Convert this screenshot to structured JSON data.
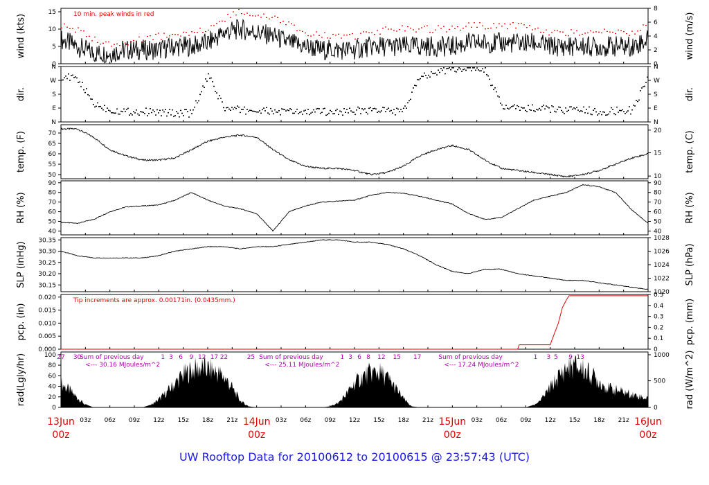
{
  "footer": "UW Rooftop Data for 20100612  to  20100615 @ 23:57:43  (UTC)",
  "colors": {
    "peak": "#e00000",
    "precip": "#e00000",
    "annot": "#b000b0",
    "footer": "#1a1ae0",
    "date": "#e00000"
  },
  "chart_data": [
    {
      "type": "line",
      "panel": "wind",
      "ylabel_left": "wind (kts)",
      "ylabel_right": "wind (m/s)",
      "left_ticks": [
        "0",
        "5",
        "10",
        "15"
      ],
      "right_ticks": [
        "0",
        "2",
        "4",
        "6",
        "8"
      ],
      "ylim": [
        0,
        16
      ],
      "annotation": "10 min. peak winds in red",
      "series": [
        {
          "x": [
            0,
            2,
            4,
            6,
            8,
            10,
            12,
            14,
            16,
            18,
            20,
            22,
            24,
            26,
            28,
            30,
            32,
            34,
            36,
            38,
            40,
            42,
            44,
            46,
            48,
            50,
            52,
            54,
            56,
            58,
            60,
            62,
            64,
            66,
            68,
            70,
            72
          ],
          "values": [
            7,
            5,
            3,
            3,
            4,
            4,
            4,
            5,
            5,
            6,
            9,
            10,
            9,
            8,
            6,
            5,
            4,
            4,
            4,
            5,
            5,
            5,
            5,
            5,
            5,
            6,
            6,
            6,
            6,
            6,
            5,
            5,
            5,
            5,
            5,
            5,
            7
          ]
        },
        {
          "x": [
            0,
            2,
            4,
            6,
            8,
            10,
            12,
            14,
            16,
            18,
            20,
            22,
            24,
            26,
            28,
            30,
            32,
            34,
            36,
            38,
            40,
            42,
            44,
            46,
            48,
            50,
            52,
            54,
            56,
            58,
            60,
            62,
            64,
            66,
            68,
            70,
            72
          ],
          "values": [
            11,
            10,
            7,
            6,
            6,
            7,
            8,
            8,
            9,
            10,
            13,
            15,
            14,
            13,
            11,
            9,
            8,
            8,
            8,
            9,
            10,
            10,
            10,
            10,
            10,
            11,
            11,
            11,
            11,
            10,
            9,
            9,
            9,
            9,
            9,
            9,
            11
          ]
        }
      ]
    },
    {
      "type": "scatter",
      "panel": "dir",
      "ylabel_left": "dir.",
      "ylabel_right": "dir.",
      "left_ticks": [
        "N",
        "E",
        "S",
        "W",
        "N"
      ],
      "right_ticks": [
        "N",
        "E",
        "S",
        "W",
        "N"
      ],
      "ylim": [
        0,
        360
      ],
      "series": [
        {
          "x": [
            0,
            2,
            4,
            6,
            8,
            10,
            12,
            14,
            16,
            18,
            20,
            22,
            24,
            26,
            28,
            30,
            32,
            34,
            36,
            38,
            40,
            42,
            44,
            46,
            48,
            50,
            52,
            54,
            56,
            58,
            60,
            62,
            64,
            66,
            68,
            70,
            72
          ],
          "values": [
            300,
            280,
            120,
            80,
            70,
            70,
            65,
            60,
            60,
            300,
            90,
            80,
            75,
            70,
            70,
            65,
            70,
            70,
            75,
            80,
            75,
            70,
            300,
            330,
            350,
            350,
            340,
            100,
            90,
            90,
            85,
            80,
            80,
            70,
            75,
            80,
            300
          ]
        }
      ]
    },
    {
      "type": "line",
      "panel": "temp",
      "ylabel_left": "temp. (F)",
      "ylabel_right": "temp. (C)",
      "left_ticks": [
        "50",
        "55",
        "60",
        "65",
        "70"
      ],
      "right_ticks": [
        "10",
        "15",
        "20"
      ],
      "ylim": [
        48,
        74
      ],
      "series": [
        {
          "x": [
            0,
            2,
            4,
            6,
            8,
            10,
            12,
            14,
            16,
            18,
            20,
            22,
            24,
            26,
            28,
            30,
            32,
            34,
            36,
            38,
            40,
            42,
            44,
            46,
            48,
            50,
            52,
            54,
            56,
            58,
            60,
            62,
            64,
            66,
            68,
            70,
            72
          ],
          "values": [
            72,
            72,
            68,
            62,
            59,
            57,
            57,
            58,
            62,
            66,
            68,
            69,
            68,
            62,
            57,
            54,
            53,
            53,
            52,
            50,
            51,
            54,
            59,
            62,
            64,
            62,
            57,
            53,
            52,
            51,
            50,
            49,
            50,
            52,
            55,
            58,
            60
          ]
        }
      ]
    },
    {
      "type": "line",
      "panel": "rh",
      "ylabel_left": "RH (%)",
      "ylabel_right": "RH (%)",
      "left_ticks": [
        "40",
        "50",
        "60",
        "70",
        "80",
        "90"
      ],
      "right_ticks": [
        "40",
        "50",
        "60",
        "70",
        "80",
        "90"
      ],
      "ylim": [
        36,
        92
      ],
      "series": [
        {
          "x": [
            0,
            2,
            4,
            6,
            8,
            10,
            12,
            14,
            16,
            18,
            20,
            22,
            24,
            26,
            28,
            30,
            32,
            34,
            36,
            38,
            40,
            42,
            44,
            46,
            48,
            50,
            52,
            54,
            56,
            58,
            60,
            62,
            64,
            66,
            68,
            70,
            72
          ],
          "values": [
            49,
            48,
            52,
            60,
            65,
            66,
            67,
            72,
            80,
            72,
            66,
            63,
            58,
            40,
            60,
            66,
            70,
            71,
            72,
            77,
            80,
            79,
            76,
            72,
            68,
            58,
            52,
            54,
            63,
            72,
            76,
            80,
            88,
            86,
            80,
            62,
            48
          ]
        }
      ]
    },
    {
      "type": "line",
      "panel": "slp",
      "ylabel_left": "SLP (inHg)",
      "ylabel_right": "SLP (hPa)",
      "left_ticks": [
        "30.15",
        "30.20",
        "30.25",
        "30.30",
        "30.35"
      ],
      "right_ticks": [
        "1020",
        "1022",
        "1024",
        "1026",
        "1028"
      ],
      "ylim": [
        30.12,
        30.36
      ],
      "series": [
        {
          "x": [
            0,
            2,
            4,
            6,
            8,
            10,
            12,
            14,
            16,
            18,
            20,
            22,
            24,
            26,
            28,
            30,
            32,
            34,
            36,
            38,
            40,
            42,
            44,
            46,
            48,
            50,
            52,
            54,
            56,
            58,
            60,
            62,
            64,
            66,
            68,
            70,
            72
          ],
          "values": [
            30.3,
            30.28,
            30.27,
            30.27,
            30.27,
            30.27,
            30.28,
            30.3,
            30.31,
            30.32,
            30.32,
            30.31,
            30.32,
            30.32,
            30.33,
            30.34,
            30.35,
            30.35,
            30.34,
            30.34,
            30.33,
            30.31,
            30.28,
            30.24,
            30.21,
            30.2,
            30.22,
            30.22,
            30.2,
            30.19,
            30.18,
            30.17,
            30.17,
            30.16,
            30.15,
            30.14,
            30.13
          ]
        }
      ]
    },
    {
      "type": "line",
      "panel": "pcp",
      "ylabel_left": "pcp. (in)",
      "ylabel_right": "pcp. (mm)",
      "left_ticks": [
        "0.000",
        "0.005",
        "0.010",
        "0.015",
        "0.020"
      ],
      "right_ticks": [
        "0",
        "0.1",
        "0.2",
        "0.3",
        "0.4",
        "0.5"
      ],
      "ylim": [
        0,
        0.021
      ],
      "annotation": "Tip increments are approx. 0.00171in. (0.0435mm.)",
      "series": [
        {
          "x": [
            0,
            56,
            56.2,
            60,
            60.2,
            61,
            61.5,
            62,
            62.3,
            72
          ],
          "values": [
            0,
            0,
            0.0017,
            0.0017,
            0.0034,
            0.01,
            0.016,
            0.019,
            0.0205,
            0.0205
          ]
        }
      ]
    },
    {
      "type": "area",
      "panel": "rad",
      "ylabel_left": "rad(Lgly/hr)",
      "ylabel_right": "rad (W/m^2)",
      "left_ticks": [
        "0",
        "20",
        "40",
        "60",
        "80",
        "100"
      ],
      "right_ticks": [
        "0",
        "500",
        "1000"
      ],
      "ylim": [
        0,
        105
      ],
      "hour_labels": [
        {
          "t": 0,
          "text": "27"
        },
        {
          "t": 2,
          "text": "30"
        },
        {
          "t": 12.5,
          "text": "1"
        },
        {
          "t": 13.5,
          "text": "3"
        },
        {
          "t": 14.7,
          "text": "6"
        },
        {
          "t": 16,
          "text": "9"
        },
        {
          "t": 17.3,
          "text": "12"
        },
        {
          "t": 18.8,
          "text": "17"
        },
        {
          "t": 20,
          "text": "22"
        },
        {
          "t": 23.3,
          "text": "25"
        },
        {
          "t": 34.5,
          "text": "1"
        },
        {
          "t": 35.5,
          "text": "3"
        },
        {
          "t": 36.6,
          "text": "6"
        },
        {
          "t": 37.7,
          "text": "8"
        },
        {
          "t": 39.3,
          "text": "12"
        },
        {
          "t": 41.2,
          "text": "15"
        },
        {
          "t": 43.7,
          "text": "17"
        },
        {
          "t": 58.2,
          "text": "1"
        },
        {
          "t": 59.8,
          "text": "3"
        },
        {
          "t": 60.7,
          "text": "5"
        },
        {
          "t": 62.5,
          "text": "9"
        },
        {
          "t": 63.7,
          "text": "13"
        }
      ],
      "day_sums": [
        {
          "t": 2.3,
          "head": "Sum of previous day",
          "sub": "<--- 30.16 MJoules/m^2"
        },
        {
          "t": 24.3,
          "head": "Sum of previous day",
          "sub": "<--- 25.11 MJoules/m^2"
        },
        {
          "t": 46.3,
          "head": "Sum of previous day",
          "sub": "<--- 17.24 MJoules/m^2"
        }
      ],
      "series": [
        {
          "x": [
            0,
            1,
            2,
            3,
            4,
            5,
            6,
            7,
            8,
            9,
            10,
            11,
            12,
            13,
            14,
            15,
            16,
            17,
            18,
            19,
            20,
            21,
            22,
            23,
            24,
            25,
            26,
            27,
            28,
            29,
            30,
            31,
            32,
            33,
            34,
            35,
            36,
            37,
            38,
            39,
            40,
            41,
            42,
            43,
            44,
            45,
            46,
            47,
            48,
            49,
            50,
            51,
            52,
            53,
            54,
            55,
            56,
            57,
            58,
            59,
            60,
            61,
            62,
            63,
            64,
            65,
            66,
            67,
            68,
            69,
            70,
            71,
            72
          ],
          "values": [
            55,
            40,
            22,
            6,
            0,
            0,
            0,
            0,
            0,
            0,
            0,
            5,
            18,
            35,
            55,
            75,
            85,
            90,
            88,
            82,
            70,
            45,
            15,
            2,
            0,
            0,
            0,
            0,
            0,
            0,
            0,
            0,
            0,
            2,
            10,
            30,
            55,
            70,
            80,
            80,
            68,
            45,
            20,
            2,
            0,
            0,
            0,
            0,
            0,
            0,
            0,
            0,
            0,
            0,
            0,
            0,
            0,
            0,
            5,
            20,
            45,
            70,
            90,
            95,
            88,
            75,
            60,
            45,
            40,
            35,
            30,
            25,
            20
          ]
        }
      ]
    }
  ],
  "x_axis": {
    "hour_ticks": [
      "03z",
      "06z",
      "09z",
      "12z",
      "15z",
      "18z",
      "21z",
      "03z",
      "06z",
      "09z",
      "12z",
      "15z",
      "18z",
      "21z",
      "03z",
      "06z",
      "09z",
      "12z",
      "15z",
      "18z",
      "21z"
    ],
    "day_labels": [
      {
        "date": "13Jun",
        "time": "00z"
      },
      {
        "date": "14Jun",
        "time": "00z"
      },
      {
        "date": "15Jun",
        "time": "00z"
      },
      {
        "date": "16Jun",
        "time": "00z"
      }
    ]
  }
}
